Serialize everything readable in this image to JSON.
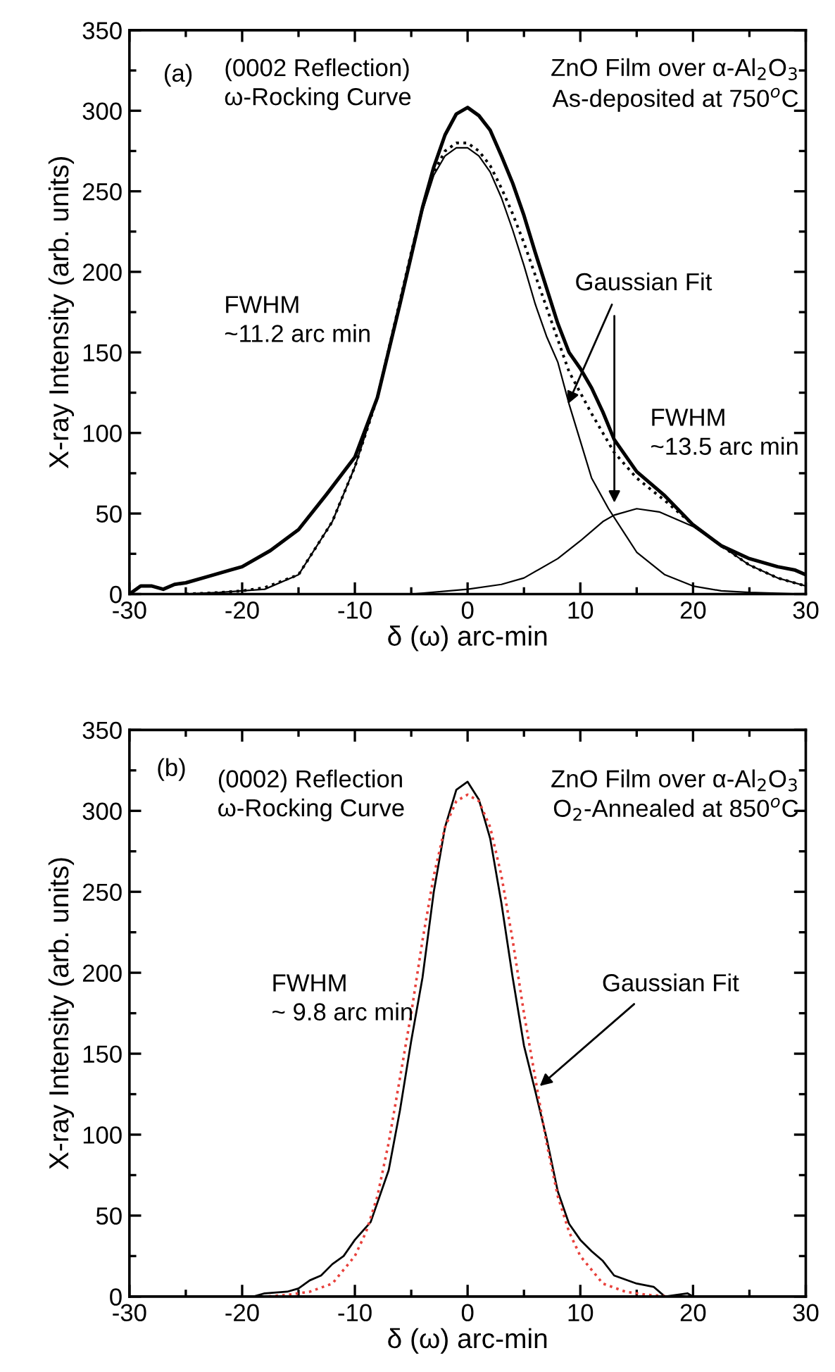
{
  "chart_data": [
    {
      "type": "line",
      "xlabel": "δ (ω) arc-min",
      "ylabel": "X-ray Intensity (arb. units)",
      "xlim": [
        -30,
        30
      ],
      "ylim": [
        0,
        350
      ],
      "xticks": [
        -30,
        -20,
        -10,
        0,
        10,
        20,
        30
      ],
      "yticks": [
        0,
        50,
        100,
        150,
        200,
        250,
        300,
        350
      ],
      "grid": false,
      "legend": false,
      "series": [
        {
          "color": "#000000",
          "line_style": "solid",
          "x": [
            -30,
            -29,
            -28,
            -27,
            -26,
            -25,
            -23,
            -21,
            -20,
            -17.5,
            -15,
            -12.5,
            -10,
            -8,
            -6,
            -5,
            -4,
            -3,
            -2,
            -1,
            0,
            1,
            2,
            3,
            4,
            5,
            6,
            7,
            8,
            9,
            10,
            11,
            12,
            13,
            15,
            17.5,
            20,
            22.5,
            25,
            27.5,
            29,
            30
          ],
          "values": [
            0,
            5,
            5,
            3,
            6,
            7,
            11,
            15,
            17,
            27,
            40,
            62,
            85,
            122,
            180,
            210,
            240,
            265,
            285,
            298,
            302,
            297,
            288,
            272,
            255,
            235,
            212,
            190,
            168,
            150,
            140,
            128,
            113,
            96,
            76,
            61,
            43,
            30,
            22,
            17,
            15,
            12
          ]
        },
        {
          "color": "#000000",
          "line_style": "dotted",
          "x": [
            -25,
            -22,
            -20,
            -18,
            -15,
            -12,
            -10,
            -8,
            -6,
            -5,
            -4,
            -3,
            -2,
            -1,
            0,
            1,
            2,
            3,
            4,
            5,
            6,
            7,
            8,
            9,
            10,
            11,
            12,
            13,
            15,
            17.5,
            20,
            22.5,
            25,
            27.5,
            30
          ],
          "values": [
            0,
            1,
            2,
            4,
            12,
            45,
            79,
            122,
            182,
            212,
            240,
            262,
            275,
            280,
            280,
            275,
            266,
            252,
            236,
            218,
            198,
            178,
            158,
            138,
            125,
            112,
            100,
            88,
            72,
            58,
            43,
            30,
            18,
            10,
            5
          ]
        },
        {
          "color": "#000000",
          "line_style": "solid",
          "x": [
            -25,
            -22,
            -20,
            -18,
            -15,
            -12,
            -10,
            -8,
            -6,
            -5,
            -4,
            -3,
            -2,
            -1,
            0,
            1,
            2,
            3,
            4,
            5,
            6,
            7,
            8,
            9,
            10,
            11,
            12.5,
            15,
            17.5,
            20,
            22.5,
            25,
            30
          ],
          "values": [
            0,
            1,
            2,
            3,
            12,
            45,
            79,
            122,
            180,
            210,
            238,
            260,
            272,
            277,
            277,
            272,
            262,
            246,
            226,
            204,
            180,
            160,
            144,
            118,
            95,
            72,
            53,
            26,
            12,
            5,
            2,
            1,
            0
          ]
        },
        {
          "color": "#000000",
          "line_style": "solid",
          "x": [
            -5,
            0,
            3,
            5,
            8,
            10,
            12,
            13,
            15,
            17,
            20,
            22.5,
            25,
            27.5,
            30
          ],
          "values": [
            0,
            3,
            6,
            10,
            22,
            33,
            45,
            49,
            53,
            51,
            42,
            30,
            18,
            10,
            5
          ]
        }
      ],
      "annotations": [
        "(a)",
        "(0002 Reflection)\nω-Rocking Curve",
        "ZnO Film over α-Al$_{2}$O$_{3}$\nAs-deposited at 750$^{o}$C",
        "FWHM\n~11.2 arc min",
        {
          "text": "Gaussian Fit",
          "x": 8.9,
          "y": 118
        },
        "FWHM\n~13.5 arc min"
      ]
    },
    {
      "type": "line",
      "xlabel": "δ (ω) arc-min",
      "ylabel": "X-ray Intensity (arb. units)",
      "xlim": [
        -30,
        30
      ],
      "ylim": [
        0,
        350
      ],
      "xticks": [
        -30,
        -20,
        -10,
        0,
        10,
        20,
        30
      ],
      "yticks": [
        0,
        50,
        100,
        150,
        200,
        250,
        300,
        350
      ],
      "grid": false,
      "legend": false,
      "series": [
        {
          "color": "#000000",
          "line_style": "solid",
          "x": [
            -26,
            -19,
            -18,
            -16,
            -15,
            -14,
            -13,
            -12,
            -11,
            -10,
            -8.6,
            -7,
            -6,
            -5,
            -4,
            -3,
            -2,
            -1,
            0,
            1,
            2,
            3,
            4,
            5,
            6,
            7,
            8,
            9,
            10,
            11,
            12,
            13,
            15,
            16.5,
            17.5,
            19.5,
            20,
            24
          ],
          "values": [
            0,
            0,
            2,
            3,
            5,
            10,
            13,
            20,
            25,
            35,
            46,
            78,
            115,
            158,
            197,
            250,
            290,
            313,
            318,
            307,
            283,
            243,
            197,
            155,
            127,
            98,
            65,
            45,
            35,
            28,
            22,
            13,
            8,
            6,
            0,
            2,
            0,
            0
          ]
        },
        {
          "color": "#e8413c",
          "line_style": "dotted",
          "x": [
            -26,
            -18,
            -16,
            -14,
            -12,
            -10,
            -9,
            -8,
            -7,
            -6,
            -5,
            -4,
            -3,
            -2,
            -1,
            0,
            1,
            2,
            3,
            4,
            5,
            6,
            7,
            8,
            9,
            10,
            12,
            14,
            16,
            18,
            24
          ],
          "values": [
            0,
            0,
            1,
            3,
            8,
            25,
            40,
            62,
            95,
            135,
            175,
            220,
            260,
            290,
            306,
            310,
            306,
            290,
            260,
            220,
            175,
            135,
            95,
            62,
            40,
            25,
            8,
            3,
            1,
            0,
            0
          ]
        }
      ],
      "annotations": [
        "(b)",
        "(0002) Reflection\nω-Rocking Curve",
        "ZnO Film over α-Al$_{2}$O$_{3}$\nO$_{2}$-Annealed at 850$^{o}$C",
        "FWHM\n~ 9.8 arc min",
        {
          "text": "Gaussian Fit",
          "x": 6.4,
          "y": 130
        }
      ]
    }
  ]
}
